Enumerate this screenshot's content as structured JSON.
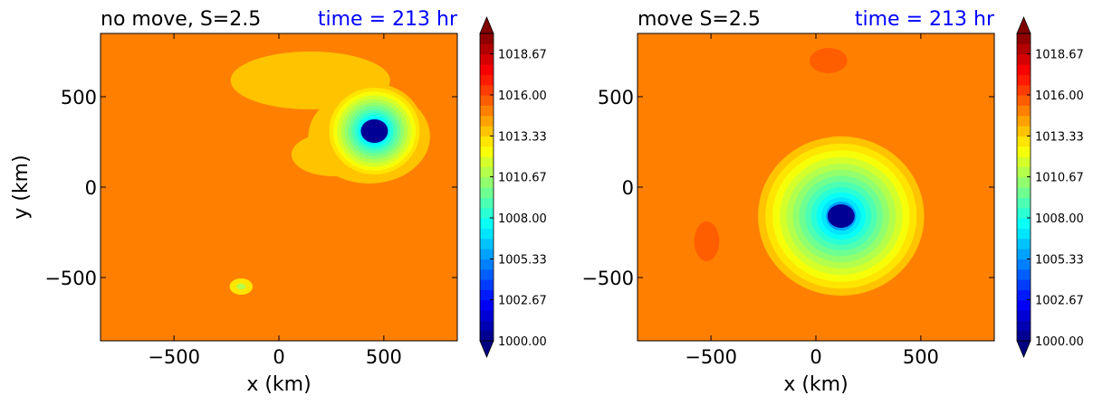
{
  "chart_data": [
    {
      "type": "heatmap",
      "title": "no move, S=2.5",
      "time_label": "time = 213 hr",
      "xlabel": "x (km)",
      "ylabel": "y (km)",
      "xlim": [
        -850,
        850
      ],
      "ylim": [
        -850,
        850
      ],
      "xticks": [
        {
          "v": -500,
          "t": "−500"
        },
        {
          "v": 0,
          "t": "0"
        },
        {
          "v": 500,
          "t": "500"
        }
      ],
      "yticks": [
        {
          "v": 500,
          "t": "500"
        },
        {
          "v": 0,
          "t": "0"
        },
        {
          "v": -500,
          "t": "−500"
        }
      ],
      "background_level": 1014.7,
      "vortex": {
        "center": [
          455,
          310
        ],
        "min": 1000.0,
        "radius_km": 210
      },
      "features": [
        {
          "kind": "band",
          "cx": 150,
          "cy": 590,
          "rx": 380,
          "ry": 160,
          "level": 1013.8
        },
        {
          "kind": "band",
          "cx": 430,
          "cy": 280,
          "rx": 290,
          "ry": 260,
          "level": 1013.8
        },
        {
          "kind": "band",
          "cx": 260,
          "cy": 180,
          "rx": 200,
          "ry": 120,
          "level": 1013.8
        },
        {
          "kind": "spot",
          "cx": -180,
          "cy": -550,
          "rx": 55,
          "ry": 45,
          "level": 1012.9
        },
        {
          "kind": "spot",
          "cx": -180,
          "cy": -550,
          "rx": 22,
          "ry": 16,
          "level": 1011.0
        }
      ],
      "colorbar": {
        "min": 1000.0,
        "max": 1020.0,
        "tick_labels": [
          "1000.00",
          "1002.67",
          "1005.33",
          "1008.00",
          "1010.67",
          "1013.33",
          "1016.00",
          "1018.67"
        ]
      }
    },
    {
      "type": "heatmap",
      "title": "move S=2.5",
      "time_label": "time = 213 hr",
      "xlabel": "x (km)",
      "ylabel": "",
      "xlim": [
        -850,
        850
      ],
      "ylim": [
        -850,
        850
      ],
      "xticks": [
        {
          "v": -500,
          "t": "−500"
        },
        {
          "v": 0,
          "t": "0"
        },
        {
          "v": 500,
          "t": "500"
        }
      ],
      "yticks": [
        {
          "v": 500,
          "t": "500"
        },
        {
          "v": 0,
          "t": "0"
        },
        {
          "v": -500,
          "t": "−500"
        }
      ],
      "background_level": 1014.7,
      "vortex": {
        "center": [
          120,
          -160
        ],
        "min": 1000.0,
        "radius_km": 370
      },
      "features": [
        {
          "kind": "spot",
          "cx": 60,
          "cy": 700,
          "rx": 90,
          "ry": 70,
          "level": 1015.6
        },
        {
          "kind": "spot",
          "cx": -520,
          "cy": -300,
          "rx": 60,
          "ry": 110,
          "level": 1015.6
        }
      ],
      "colorbar": {
        "min": 1000.0,
        "max": 1020.0,
        "tick_labels": [
          "1000.00",
          "1002.67",
          "1005.33",
          "1008.00",
          "1010.67",
          "1013.33",
          "1016.00",
          "1018.67"
        ]
      }
    }
  ],
  "colors": {
    "title": "#000000",
    "time_label": "#0000ff",
    "colormap": "jet"
  }
}
